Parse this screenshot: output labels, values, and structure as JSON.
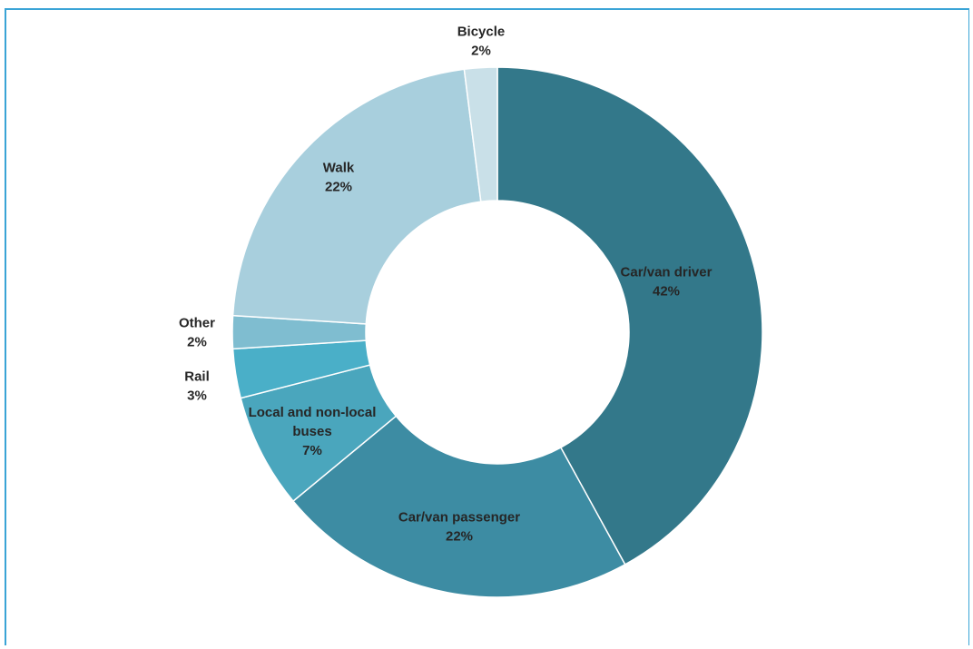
{
  "chart_data": {
    "type": "pie",
    "style": "donut",
    "categories": [
      "Car/van driver",
      "Car/van passenger",
      "Local and non-local buses",
      "Rail",
      "Other",
      "Walk",
      "Bicycle"
    ],
    "values": [
      42,
      22,
      7,
      3,
      2,
      22,
      2
    ],
    "value_labels": [
      "42%",
      "22%",
      "7%",
      "3%",
      "2%",
      "22%",
      "2%"
    ],
    "label_lines": [
      [
        "Car/van driver",
        "42%"
      ],
      [
        "Car/van passenger",
        "22%"
      ],
      [
        "Local and non-local",
        "buses",
        "7%"
      ],
      [
        "Rail",
        "3%"
      ],
      [
        "Other",
        "2%"
      ],
      [
        "Walk",
        "22%"
      ],
      [
        "Bicycle",
        "2%"
      ]
    ],
    "colors": [
      "#33788a",
      "#3d8ca3",
      "#4aa6bd",
      "#4aafc8",
      "#7fbdd0",
      "#a8cfdd",
      "#c9e0e8"
    ],
    "legend": "none",
    "title": ""
  }
}
